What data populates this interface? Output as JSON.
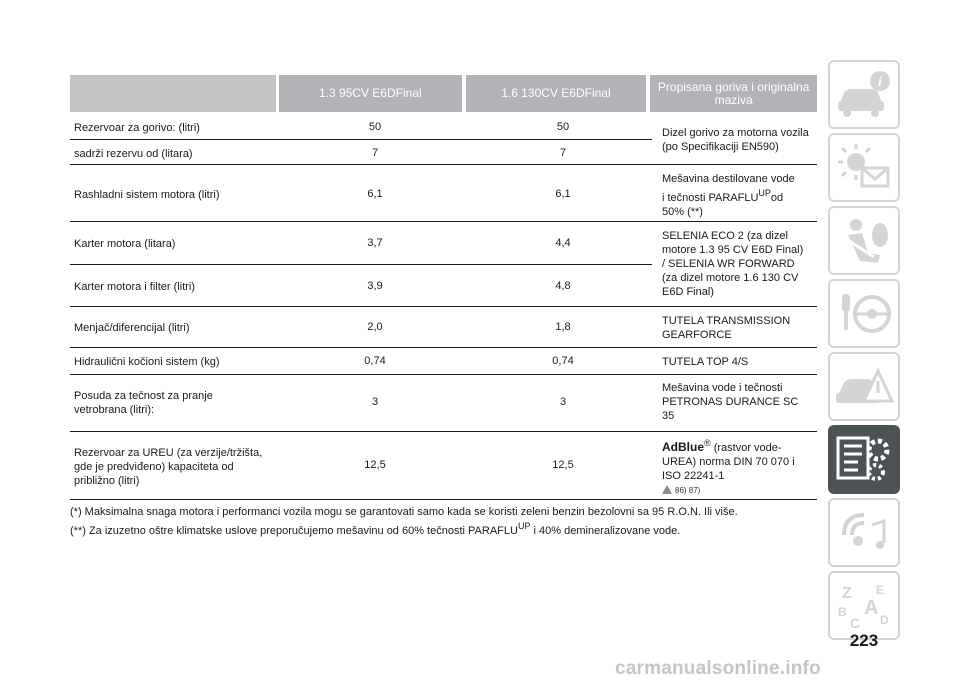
{
  "table": {
    "headers": [
      "1.3 95CV E6DFinal",
      "1.6 130CV E6DFinal",
      "Propisana goriva i originalna maziva"
    ],
    "rows": [
      {
        "label": "Rezervoar za gorivo: (litri)",
        "v1": "50",
        "v2": "50"
      },
      {
        "label": "sadrži rezervu od (litara)",
        "v1": "7",
        "v2": "7"
      },
      {
        "label": "Rashladni sistem motora (litri)",
        "v1": "6,1",
        "v2": "6,1"
      },
      {
        "label": "Karter motora (litara)",
        "v1": "3,7",
        "v2": "4,4"
      },
      {
        "label": "Karter motora i filter (litri)",
        "v1": "3,9",
        "v2": "4,8"
      },
      {
        "label": "Menjač/diferencijal (litri)",
        "v1": "2,0",
        "v2": "1,8"
      },
      {
        "label": "Hidraulični kočioni sistem (kg)",
        "v1": "0,74",
        "v2": "0,74"
      },
      {
        "label_lines": [
          "Posuda za tečnost za pranje",
          "vetrobrana (litri):"
        ],
        "v1": "3",
        "v2": "3"
      },
      {
        "label_lines": [
          "Rezervoar za UREU (za verzije/tržišta,",
          "gde je predviđeno) kapaciteta od",
          "približno (litri)"
        ],
        "v1": "12,5",
        "v2": "12,5"
      }
    ],
    "notes": {
      "fuel": [
        "Dizel gorivo za motorna vozila",
        "(po Specifikaciji EN590)"
      ],
      "coolant": {
        "line1": "Mešavina destilovane vode",
        "line2_pre": "i tečnosti PARAFLU",
        "sup": "UP",
        "line2_post": "od",
        "line3": "50% (**)"
      },
      "engine_oil": [
        "SELENIA ECO 2 (za dizel",
        "motore 1.3 95 CV E6D Final)",
        "/ SELENIA WR FORWARD",
        "(za dizel motore 1.6 130 CV",
        "E6D Final)"
      ],
      "gearbox": [
        "TUTELA TRANSMISSION",
        "GEARFORCE"
      ],
      "brake": "TUTELA TOP 4/S",
      "washer": [
        "Mešavina vode i tečnosti",
        "PETRONAS DURANCE SC",
        "35"
      ],
      "urea": {
        "brand": "AdBlue",
        "reg": "®",
        "line1": "(rastvor vode-",
        "line2": "UREA) norma DIN 70 070 i",
        "line3": "ISO 22241-1",
        "refs": "86) 87)"
      }
    }
  },
  "footer": {
    "line1": "(*) Maksimalna snaga motora i performanci vozila mogu se garantovati samo kada se koristi zeleni benzin bezolovni sa 95 R.O.N. Ili više.",
    "line2_pre": "(**) Za izuzetno oštre klimatske uslove preporučujemo mešavinu od 60% tečnosti PARAFLU",
    "line2_sup": "UP",
    "line2_post": "i 40% demineralizovane vode."
  },
  "side_tabs": [
    {
      "icon": "car-info-icon",
      "active": false
    },
    {
      "icon": "warning-lights-icon",
      "active": false
    },
    {
      "icon": "seat-safety-icon",
      "active": false
    },
    {
      "icon": "key-steering-icon",
      "active": false
    },
    {
      "icon": "emergency-icon",
      "active": false
    },
    {
      "icon": "technical-data-icon",
      "active": true
    },
    {
      "icon": "multimedia-icon",
      "active": false
    },
    {
      "icon": "index-icon",
      "active": false
    }
  ],
  "page_number": "223",
  "watermark": "carmanualsonline.info",
  "colors": {
    "header_bg": "#b2b3b6",
    "active_tab": "#4c5357",
    "tab_border": "#d3d4d6"
  }
}
